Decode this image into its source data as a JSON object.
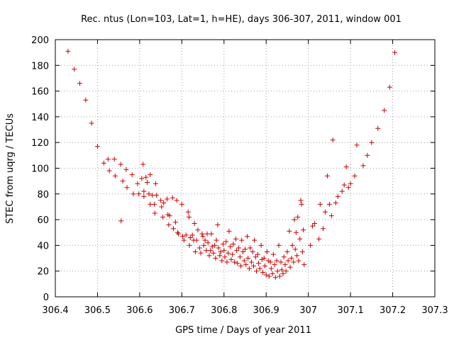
{
  "chart_data": {
    "type": "scatter",
    "title": "Rec. ntus (Lon=103, Lat=1, h=HE), days 306-307, 2011, window 001",
    "xlabel": "GPS time / Days of year 2011",
    "ylabel": "STEC from uqrg / TECUs",
    "xlim": [
      306.4,
      307.3
    ],
    "ylim": [
      0,
      200
    ],
    "xticks": [
      "306.4",
      "306.5",
      "306.6",
      "306.7",
      "306.8",
      "306.9",
      "307",
      "307.1",
      "307.2",
      "307.3"
    ],
    "yticks": [
      "0",
      "20",
      "40",
      "60",
      "80",
      "100",
      "120",
      "140",
      "160",
      "180",
      "200"
    ],
    "grid": true,
    "marker": "+",
    "color": "#cc0000",
    "points": [
      [
        306.43,
        191
      ],
      [
        306.445,
        177
      ],
      [
        306.458,
        166
      ],
      [
        306.472,
        153
      ],
      [
        306.486,
        135
      ],
      [
        306.5,
        117
      ],
      [
        306.515,
        104
      ],
      [
        306.525,
        107
      ],
      [
        306.54,
        107
      ],
      [
        306.528,
        98
      ],
      [
        306.542,
        94
      ],
      [
        306.555,
        103
      ],
      [
        306.556,
        59
      ],
      [
        306.56,
        90
      ],
      [
        306.568,
        99
      ],
      [
        306.57,
        85
      ],
      [
        306.582,
        95
      ],
      [
        306.585,
        80
      ],
      [
        306.595,
        88
      ],
      [
        306.598,
        80
      ],
      [
        306.605,
        92
      ],
      [
        306.608,
        103
      ],
      [
        306.61,
        82
      ],
      [
        306.61,
        78
      ],
      [
        306.615,
        93
      ],
      [
        306.618,
        89
      ],
      [
        306.622,
        80
      ],
      [
        306.625,
        95
      ],
      [
        306.625,
        72
      ],
      [
        306.63,
        79
      ],
      [
        306.635,
        72
      ],
      [
        306.636,
        65
      ],
      [
        306.638,
        88
      ],
      [
        306.64,
        79
      ],
      [
        306.65,
        75
      ],
      [
        306.652,
        70
      ],
      [
        306.655,
        62
      ],
      [
        306.657,
        73
      ],
      [
        306.665,
        76
      ],
      [
        306.667,
        64
      ],
      [
        306.669,
        56
      ],
      [
        306.671,
        63
      ],
      [
        306.678,
        77
      ],
      [
        306.68,
        53
      ],
      [
        306.685,
        58
      ],
      [
        306.688,
        75
      ],
      [
        306.69,
        50
      ],
      [
        306.692,
        49
      ],
      [
        306.7,
        72
      ],
      [
        306.702,
        47
      ],
      [
        306.705,
        44
      ],
      [
        306.71,
        48
      ],
      [
        306.715,
        66
      ],
      [
        306.717,
        62
      ],
      [
        306.718,
        40
      ],
      [
        306.72,
        46
      ],
      [
        306.725,
        48
      ],
      [
        306.728,
        44
      ],
      [
        306.73,
        57
      ],
      [
        306.732,
        35
      ],
      [
        306.735,
        44
      ],
      [
        306.738,
        52
      ],
      [
        306.742,
        38
      ],
      [
        306.745,
        34
      ],
      [
        306.748,
        49
      ],
      [
        306.75,
        47
      ],
      [
        306.752,
        40
      ],
      [
        306.755,
        44
      ],
      [
        306.758,
        36
      ],
      [
        306.76,
        49
      ],
      [
        306.762,
        42
      ],
      [
        306.765,
        32
      ],
      [
        306.768,
        36
      ],
      [
        306.77,
        49
      ],
      [
        306.772,
        39
      ],
      [
        306.775,
        34
      ],
      [
        306.778,
        40
      ],
      [
        306.78,
        30
      ],
      [
        306.782,
        44
      ],
      [
        306.785,
        56
      ],
      [
        306.787,
        38
      ],
      [
        306.79,
        32
      ],
      [
        306.792,
        35
      ],
      [
        306.795,
        28
      ],
      [
        306.798,
        41
      ],
      [
        306.8,
        36
      ],
      [
        306.802,
        31
      ],
      [
        306.805,
        43
      ],
      [
        306.807,
        27
      ],
      [
        306.81,
        34
      ],
      [
        306.812,
        51
      ],
      [
        306.815,
        39
      ],
      [
        306.817,
        29
      ],
      [
        306.82,
        33
      ],
      [
        306.822,
        41
      ],
      [
        306.825,
        27
      ],
      [
        306.828,
        45
      ],
      [
        306.83,
        36
      ],
      [
        306.832,
        26
      ],
      [
        306.835,
        38
      ],
      [
        306.838,
        31
      ],
      [
        306.84,
        24
      ],
      [
        306.842,
        44
      ],
      [
        306.845,
        35
      ],
      [
        306.848,
        28
      ],
      [
        306.85,
        37
      ],
      [
        306.852,
        25
      ],
      [
        306.855,
        47
      ],
      [
        306.857,
        30
      ],
      [
        306.86,
        22
      ],
      [
        306.862,
        38
      ],
      [
        306.865,
        27
      ],
      [
        306.868,
        35
      ],
      [
        306.87,
        24
      ],
      [
        306.872,
        44
      ],
      [
        306.875,
        31
      ],
      [
        306.877,
        20
      ],
      [
        306.88,
        33
      ],
      [
        306.882,
        26
      ],
      [
        306.885,
        22
      ],
      [
        306.888,
        40
      ],
      [
        306.89,
        29
      ],
      [
        306.892,
        19
      ],
      [
        306.895,
        30
      ],
      [
        306.897,
        24
      ],
      [
        306.9,
        17
      ],
      [
        306.902,
        35
      ],
      [
        306.905,
        28
      ],
      [
        306.907,
        16
      ],
      [
        306.91,
        27
      ],
      [
        306.912,
        22
      ],
      [
        306.915,
        18
      ],
      [
        306.917,
        33
      ],
      [
        306.92,
        25
      ],
      [
        306.922,
        15
      ],
      [
        306.925,
        28
      ],
      [
        306.927,
        20
      ],
      [
        306.93,
        40
      ],
      [
        306.932,
        16
      ],
      [
        306.935,
        27
      ],
      [
        306.937,
        21
      ],
      [
        306.94,
        18
      ],
      [
        306.942,
        31
      ],
      [
        306.945,
        25
      ],
      [
        306.947,
        20
      ],
      [
        306.95,
        35
      ],
      [
        306.952,
        28
      ],
      [
        306.955,
        51
      ],
      [
        306.957,
        23
      ],
      [
        306.96,
        30
      ],
      [
        306.962,
        40
      ],
      [
        306.965,
        27
      ],
      [
        306.967,
        60
      ],
      [
        306.969,
        37
      ],
      [
        306.971,
        50
      ],
      [
        306.973,
        32
      ],
      [
        306.975,
        62
      ],
      [
        306.977,
        28
      ],
      [
        306.98,
        45
      ],
      [
        306.982,
        75
      ],
      [
        306.984,
        72
      ],
      [
        306.986,
        35
      ],
      [
        306.988,
        52
      ],
      [
        306.99,
        25
      ],
      [
        307.005,
        40
      ],
      [
        307.01,
        55
      ],
      [
        307.015,
        57
      ],
      [
        307.025,
        45
      ],
      [
        307.028,
        72
      ],
      [
        307.035,
        53
      ],
      [
        307.04,
        66
      ],
      [
        307.045,
        94
      ],
      [
        307.05,
        72
      ],
      [
        307.055,
        63
      ],
      [
        307.058,
        122
      ],
      [
        307.065,
        73
      ],
      [
        307.07,
        78
      ],
      [
        307.08,
        82
      ],
      [
        307.085,
        87
      ],
      [
        307.09,
        101
      ],
      [
        307.095,
        85
      ],
      [
        307.1,
        88
      ],
      [
        307.11,
        94
      ],
      [
        307.115,
        118
      ],
      [
        307.13,
        102
      ],
      [
        307.14,
        110
      ],
      [
        307.15,
        120
      ],
      [
        307.165,
        131
      ],
      [
        307.18,
        145
      ],
      [
        307.193,
        163
      ],
      [
        307.205,
        190
      ]
    ]
  }
}
